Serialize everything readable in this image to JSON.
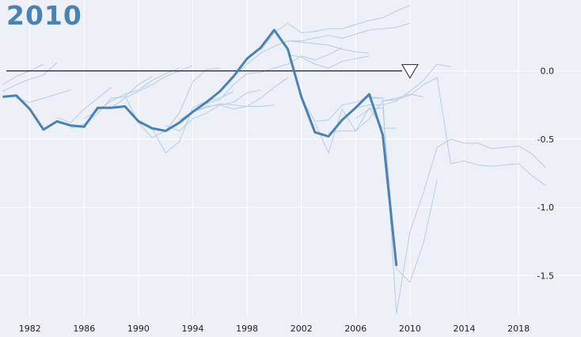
{
  "header": {
    "title": "2010"
  },
  "chart_data": {
    "type": "line",
    "title": "2010",
    "xlabel": "",
    "ylabel": "",
    "xlim": [
      1979.8,
      2022.6
    ],
    "ylim": [
      -1.8,
      0.52
    ],
    "x_ticks": [
      1982,
      1986,
      1990,
      1994,
      1998,
      2002,
      2006,
      2010,
      2014,
      2018
    ],
    "y_ticks": [
      0.0,
      -0.5,
      -1.0,
      -1.5
    ],
    "y_tick_labels": [
      "0.0",
      "-0.5",
      "-1.0",
      "-1.5"
    ],
    "grid": true,
    "reference_line": {
      "y": 0.0,
      "marker_x": 2010,
      "marker": "triangle-down"
    },
    "colors": {
      "highlight": "#4a82b4",
      "background_series": "#b8cde2",
      "reference": "#222222",
      "grid": "#ffffff",
      "background": "#edf0f7"
    },
    "highlight_series": {
      "x": [
        1980,
        1981,
        1982,
        1983,
        1984,
        1985,
        1986,
        1987,
        1988,
        1989,
        1990,
        1991,
        1992,
        1993,
        1994,
        1995,
        1996,
        1997,
        1998,
        1999,
        2000,
        2001,
        2002,
        2003,
        2004,
        2005,
        2006,
        2007,
        2008,
        2009
      ],
      "y": [
        -0.19,
        -0.18,
        -0.28,
        -0.43,
        -0.37,
        -0.4,
        -0.41,
        -0.27,
        -0.27,
        -0.26,
        -0.37,
        -0.42,
        -0.44,
        -0.38,
        -0.3,
        -0.23,
        -0.15,
        -0.04,
        0.09,
        0.17,
        0.3,
        0.16,
        -0.19,
        -0.45,
        -0.48,
        -0.36,
        -0.27,
        -0.17,
        -0.47,
        -1.43
      ]
    },
    "background_series": [
      {
        "x": [
          1980,
          1981,
          1982,
          1983
        ],
        "y": [
          -0.1,
          -0.04,
          0.0,
          0.05
        ]
      },
      {
        "x": [
          1980,
          1981,
          1982,
          1983,
          1984
        ],
        "y": [
          -0.15,
          -0.1,
          -0.06,
          -0.03,
          0.06
        ]
      },
      {
        "x": [
          1981,
          1982,
          1983,
          1984,
          1985
        ],
        "y": [
          -0.2,
          -0.23,
          -0.2,
          -0.17,
          -0.14
        ]
      },
      {
        "x": [
          1984,
          1985,
          1986,
          1987,
          1988
        ],
        "y": [
          -0.34,
          -0.38,
          -0.28,
          -0.2,
          -0.12
        ]
      },
      {
        "x": [
          1985,
          1986,
          1987,
          1988,
          1989,
          1990,
          1991
        ],
        "y": [
          -0.42,
          -0.39,
          -0.31,
          -0.2,
          -0.19,
          -0.1,
          -0.04
        ]
      },
      {
        "x": [
          1986,
          1987,
          1988,
          1989,
          1990,
          1991,
          1992,
          1993
        ],
        "y": [
          -0.35,
          -0.29,
          -0.22,
          -0.17,
          -0.14,
          -0.07,
          -0.02,
          0.02
        ]
      },
      {
        "x": [
          1988,
          1989,
          1990,
          1991,
          1992,
          1993,
          1994
        ],
        "y": [
          -0.27,
          -0.2,
          -0.15,
          -0.1,
          -0.04,
          0.0,
          0.04
        ]
      },
      {
        "x": [
          1989,
          1990,
          1991,
          1992,
          1993,
          1994,
          1995,
          1996
        ],
        "y": [
          -0.18,
          -0.38,
          -0.49,
          -0.44,
          -0.31,
          -0.08,
          0.01,
          0.02
        ]
      },
      {
        "x": [
          1990,
          1991,
          1992,
          1993,
          1994,
          1995,
          1996,
          1997
        ],
        "y": [
          -0.36,
          -0.42,
          -0.6,
          -0.52,
          -0.27,
          -0.22,
          -0.2,
          -0.15
        ]
      },
      {
        "x": [
          1992,
          1993,
          1994,
          1995,
          1996,
          1997,
          1998,
          1999
        ],
        "y": [
          -0.4,
          -0.44,
          -0.35,
          -0.31,
          -0.25,
          -0.23,
          -0.16,
          -0.14
        ]
      },
      {
        "x": [
          1993,
          1994,
          1995,
          1996,
          1997,
          1998,
          1999,
          2000,
          2001
        ],
        "y": [
          -0.36,
          -0.3,
          -0.26,
          -0.25,
          -0.28,
          -0.26,
          -0.2,
          -0.12,
          -0.05
        ]
      },
      {
        "x": [
          1994,
          1995,
          1996,
          1997,
          1998,
          1999,
          2000
        ],
        "y": [
          -0.3,
          -0.27,
          -0.24,
          -0.25,
          -0.26,
          -0.26,
          -0.25
        ]
      },
      {
        "x": [
          1995,
          1996,
          1997,
          1998,
          1999,
          2000,
          2001,
          2002,
          2003,
          2004,
          2005
        ],
        "y": [
          -0.24,
          -0.21,
          -0.1,
          -0.02,
          -0.01,
          0.02,
          0.05,
          0.11,
          0.08,
          0.12,
          0.17
        ]
      },
      {
        "x": [
          1997,
          1998,
          1999,
          2000,
          2001,
          2002,
          2003,
          2004,
          2005,
          2006,
          2007
        ],
        "y": [
          -0.04,
          0.05,
          0.13,
          0.18,
          0.22,
          0.21,
          0.2,
          0.19,
          0.16,
          0.14,
          0.13
        ]
      },
      {
        "x": [
          1999,
          2000,
          2001,
          2002,
          2003,
          2004,
          2005,
          2006,
          2007,
          2008,
          2009,
          2010
        ],
        "y": [
          0.15,
          0.28,
          0.35,
          0.28,
          0.29,
          0.31,
          0.31,
          0.34,
          0.37,
          0.39,
          0.44,
          0.48
        ]
      },
      {
        "x": [
          2000,
          2001,
          2002,
          2003,
          2004,
          2005,
          2006,
          2007,
          2008,
          2009,
          2010
        ],
        "y": [
          0.18,
          0.22,
          0.22,
          0.24,
          0.26,
          0.24,
          0.27,
          0.3,
          0.31,
          0.32,
          0.35
        ]
      },
      {
        "x": [
          2001,
          2002,
          2003,
          2004,
          2005,
          2006,
          2007
        ],
        "y": [
          0.12,
          0.1,
          0.05,
          0.02,
          0.07,
          0.09,
          0.11
        ]
      },
      {
        "x": [
          2002,
          2003,
          2004,
          2005,
          2006,
          2007,
          2008
        ],
        "y": [
          -0.2,
          -0.37,
          -0.36,
          -0.25,
          -0.23,
          -0.19,
          -0.2
        ]
      },
      {
        "x": [
          2003,
          2004,
          2005,
          2006,
          2007,
          2008,
          2009,
          2010,
          2011
        ],
        "y": [
          -0.38,
          -0.6,
          -0.28,
          -0.44,
          -0.35,
          -0.22,
          -0.2,
          -0.17,
          -0.19
        ]
      },
      {
        "x": [
          2004,
          2005,
          2006,
          2007,
          2008,
          2009
        ],
        "y": [
          -0.45,
          -0.44,
          -0.44,
          -0.27,
          -0.42,
          -0.42
        ]
      },
      {
        "x": [
          2005,
          2006,
          2007,
          2008,
          2009,
          2010,
          2011,
          2012,
          2013
        ],
        "y": [
          -0.35,
          -0.27,
          -0.25,
          -0.25,
          -0.22,
          -0.15,
          -0.07,
          0.05,
          0.03
        ]
      },
      {
        "x": [
          2006,
          2007,
          2008,
          2009,
          2010,
          2011,
          2012
        ],
        "y": [
          -0.35,
          -0.28,
          -0.27,
          -1.45,
          -1.55,
          -1.26,
          -0.8
        ]
      },
      {
        "x": [
          2007,
          2008,
          2009,
          2010,
          2011,
          2012,
          2013,
          2014,
          2015,
          2016,
          2017,
          2018,
          2019,
          2020
        ],
        "y": [
          -0.2,
          -0.2,
          -1.78,
          -1.18,
          -0.89,
          -0.56,
          -0.5,
          -0.53,
          -0.53,
          -0.57,
          -0.56,
          -0.55,
          -0.61,
          -0.71
        ]
      },
      {
        "x": [
          2008,
          2009,
          2010,
          2011,
          2012,
          2013,
          2014,
          2015,
          2016,
          2017,
          2018,
          2019,
          2020
        ],
        "y": [
          -0.22,
          -0.21,
          -0.18,
          -0.1,
          -0.05,
          -0.68,
          -0.66,
          -0.69,
          -0.7,
          -0.69,
          -0.68,
          -0.77,
          -0.84
        ]
      }
    ]
  }
}
